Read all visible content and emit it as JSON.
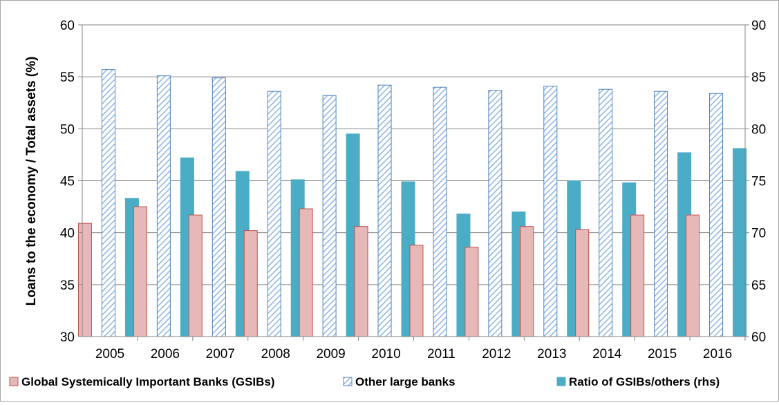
{
  "chart_data": {
    "type": "bar",
    "title": "",
    "ylabel": "Loans to the economy / Total assets (%)",
    "y2label": "",
    "categories": [
      "2005",
      "2006",
      "2007",
      "2008",
      "2009",
      "2010",
      "2011",
      "2012",
      "2013",
      "2014",
      "2015",
      "2016"
    ],
    "ylim": [
      30,
      60
    ],
    "yticks": [
      30,
      35,
      40,
      45,
      50,
      55,
      60
    ],
    "y2lim": [
      60,
      90
    ],
    "y2ticks": [
      60,
      65,
      70,
      75,
      80,
      85,
      90
    ],
    "grid": true,
    "legend_position": "bottom",
    "series": [
      {
        "name": "Global Systemically Important Banks (GSIBs)",
        "axis": "left",
        "color": "#e6b8b7",
        "edge_color": "#c0504d",
        "pattern": "solid",
        "values": [
          40.9,
          42.5,
          41.7,
          40.2,
          42.3,
          40.6,
          38.8,
          38.6,
          40.6,
          40.3,
          41.7,
          41.7
        ]
      },
      {
        "name": "Other large banks",
        "axis": "left",
        "color": "#ffffff",
        "edge_color": "#4f81bd",
        "pattern": "hatched",
        "values": [
          55.7,
          55.1,
          54.9,
          53.6,
          53.2,
          54.2,
          54.0,
          53.7,
          54.1,
          53.8,
          53.6,
          53.4
        ]
      },
      {
        "name": "Ratio of GSIBs/others (rhs)",
        "axis": "right",
        "color": "#4bacc6",
        "edge_color": "#4bacc6",
        "pattern": "solid",
        "values": [
          73.3,
          77.2,
          75.9,
          75.1,
          79.5,
          74.9,
          71.8,
          72.0,
          75.0,
          74.8,
          77.7,
          78.1
        ]
      }
    ]
  }
}
